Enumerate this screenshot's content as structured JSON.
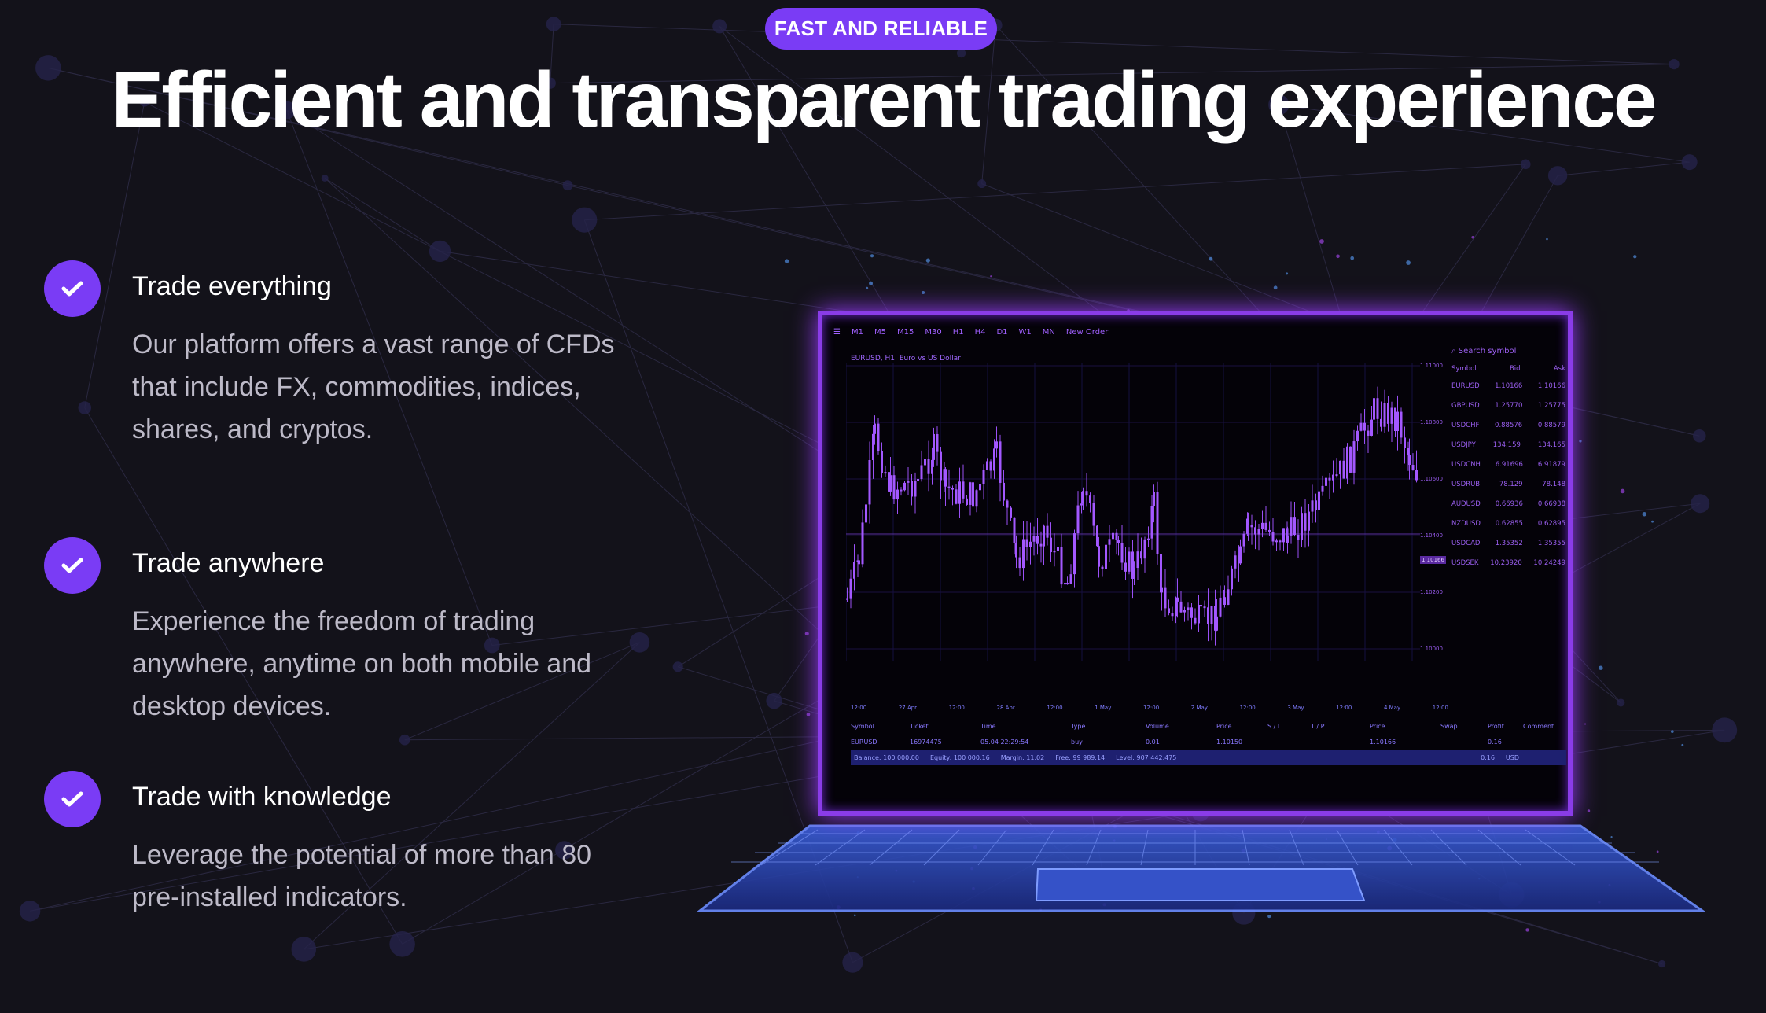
{
  "badge": "FAST AND RELIABLE",
  "title": "Efficient and transparent trading experience",
  "accent": "#7a3cf5",
  "features": [
    {
      "icon": "check-icon",
      "title": "Trade everything",
      "body": "Our platform offers a vast range of CFDs that include FX, commodities, indices, shares, and cryptos."
    },
    {
      "icon": "check-icon",
      "title": "Trade anywhere",
      "body": "Experience the freedom of trading anywhere, anytime on both mobile and desktop devices."
    },
    {
      "icon": "check-icon",
      "title": "Trade with knowledge",
      "body": "Leverage the potential of more than 80 pre-installed indicators."
    }
  ],
  "platform": {
    "toolbar": [
      "M1",
      "M5",
      "M15",
      "M30",
      "H1",
      "H4",
      "D1",
      "W1",
      "MN",
      "New Order"
    ],
    "symbol_title": "EURUSD, H1: Euro vs US Dollar",
    "search_placeholder": "Search symbol",
    "watch_headers": [
      "Symbol",
      "Bid",
      "Ask"
    ],
    "watchlist": [
      [
        "EURUSD",
        "1.10166",
        "1.10166"
      ],
      [
        "GBPUSD",
        "1.25770",
        "1.25775"
      ],
      [
        "USDCHF",
        "0.88576",
        "0.88579"
      ],
      [
        "USDJPY",
        "134.159",
        "134.165"
      ],
      [
        "USDCNH",
        "6.91696",
        "6.91879"
      ],
      [
        "USDRUB",
        "78.129",
        "78.148"
      ],
      [
        "AUDUSD",
        "0.66936",
        "0.66938"
      ],
      [
        "NZDUSD",
        "0.62855",
        "0.62895"
      ],
      [
        "USDCAD",
        "1.35352",
        "1.35355"
      ],
      [
        "USDSEK",
        "10.23920",
        "10.24249"
      ]
    ],
    "price_ticks": [
      "1.11000",
      "1.10800",
      "1.10600",
      "1.10400",
      "1.10200",
      "1.10000"
    ],
    "current_price": "1.10166",
    "time_ticks": [
      "12:00",
      "27 Apr",
      "12:00",
      "28 Apr",
      "12:00",
      "1 May",
      "12:00",
      "2 May",
      "12:00",
      "3 May",
      "12:00",
      "4 May",
      "12:00"
    ],
    "table_headers": [
      "Symbol",
      "Ticket",
      "Time",
      "Type",
      "Volume",
      "Price",
      "S / L",
      "T / P",
      "Price",
      "Swap",
      "Profit",
      "Comment"
    ],
    "table_row": [
      "EURUSD",
      "16974475",
      "05.04 22:29:54",
      "buy",
      "0.01",
      "1.10150",
      "",
      "",
      "1.10166",
      "",
      "0.16",
      ""
    ],
    "balance": [
      "Balance: 100 000.00",
      "Equity: 100 000.16",
      "Margin: 11.02",
      "Free: 99 989.14",
      "Level: 907 442.475"
    ],
    "balance_profit": "0.16",
    "balance_currency": "USD"
  }
}
